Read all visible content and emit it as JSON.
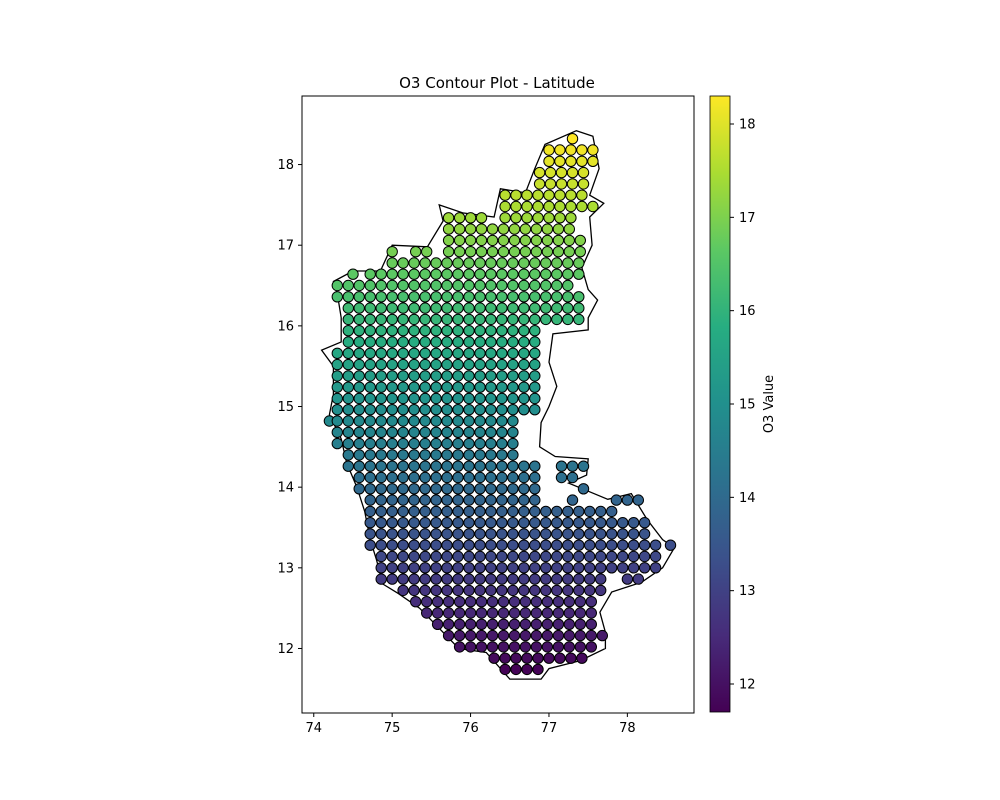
{
  "chart_data": {
    "type": "scatter",
    "title": "O3 Contour Plot - Latitude",
    "xlabel": "",
    "ylabel": "",
    "xlim": [
      73.85,
      78.85
    ],
    "ylim": [
      11.2,
      18.85
    ],
    "x_ticks": [
      "74",
      "75",
      "76",
      "77",
      "78"
    ],
    "y_ticks": [
      "12",
      "13",
      "14",
      "15",
      "16",
      "17",
      "18"
    ],
    "grid": false,
    "colormap": "viridis",
    "colorbar": {
      "label": "O3 Value",
      "range": [
        11.7,
        18.3
      ],
      "ticks": [
        "12",
        "13",
        "14",
        "15",
        "16",
        "17",
        "18"
      ]
    },
    "marker_edge_color": "#000000",
    "note_value": "O3 value equals the point's latitude",
    "grid_step": 0.14,
    "grid_origin": [
      77.3,
      18.32
    ],
    "rows": [
      {
        "lat": 18.32,
        "lon_ranges": [
          [
            77.3,
            77.3
          ]
        ]
      },
      {
        "lat": 18.18,
        "lon_ranges": [
          [
            77.0,
            77.56
          ]
        ]
      },
      {
        "lat": 18.04,
        "lon_ranges": [
          [
            77.0,
            77.56
          ]
        ]
      },
      {
        "lat": 17.9,
        "lon_ranges": [
          [
            76.88,
            77.56
          ]
        ]
      },
      {
        "lat": 17.76,
        "lon_ranges": [
          [
            76.88,
            77.56
          ]
        ]
      },
      {
        "lat": 17.62,
        "lon_ranges": [
          [
            76.44,
            77.44
          ]
        ]
      },
      {
        "lat": 17.48,
        "lon_ranges": [
          [
            76.44,
            77.56
          ]
        ]
      },
      {
        "lat": 17.34,
        "lon_ranges": [
          [
            75.72,
            76.16
          ],
          [
            76.44,
            77.3
          ]
        ]
      },
      {
        "lat": 17.2,
        "lon_ranges": [
          [
            75.72,
            77.3
          ]
        ]
      },
      {
        "lat": 17.06,
        "lon_ranges": [
          [
            75.72,
            77.44
          ]
        ]
      },
      {
        "lat": 16.92,
        "lon_ranges": [
          [
            75.0,
            75.0
          ],
          [
            75.3,
            75.44
          ],
          [
            75.72,
            77.44
          ]
        ]
      },
      {
        "lat": 16.78,
        "lon_ranges": [
          [
            75.0,
            77.44
          ]
        ]
      },
      {
        "lat": 16.64,
        "lon_ranges": [
          [
            74.5,
            74.5
          ],
          [
            74.72,
            77.44
          ]
        ]
      },
      {
        "lat": 16.5,
        "lon_ranges": [
          [
            74.3,
            77.3
          ]
        ]
      },
      {
        "lat": 16.36,
        "lon_ranges": [
          [
            74.3,
            77.44
          ]
        ]
      },
      {
        "lat": 16.22,
        "lon_ranges": [
          [
            74.44,
            77.44
          ]
        ]
      },
      {
        "lat": 16.08,
        "lon_ranges": [
          [
            74.44,
            77.44
          ]
        ]
      },
      {
        "lat": 15.94,
        "lon_ranges": [
          [
            74.44,
            76.9
          ]
        ]
      },
      {
        "lat": 15.8,
        "lon_ranges": [
          [
            74.44,
            76.9
          ]
        ]
      },
      {
        "lat": 15.66,
        "lon_ranges": [
          [
            74.3,
            76.9
          ]
        ]
      },
      {
        "lat": 15.52,
        "lon_ranges": [
          [
            74.3,
            76.9
          ]
        ]
      },
      {
        "lat": 15.38,
        "lon_ranges": [
          [
            74.3,
            76.9
          ]
        ]
      },
      {
        "lat": 15.24,
        "lon_ranges": [
          [
            74.3,
            76.9
          ]
        ]
      },
      {
        "lat": 15.1,
        "lon_ranges": [
          [
            74.3,
            76.9
          ]
        ]
      },
      {
        "lat": 14.96,
        "lon_ranges": [
          [
            74.3,
            76.9
          ]
        ]
      },
      {
        "lat": 14.82,
        "lon_ranges": [
          [
            74.2,
            74.2
          ],
          [
            74.3,
            76.66
          ]
        ]
      },
      {
        "lat": 14.68,
        "lon_ranges": [
          [
            74.3,
            76.66
          ]
        ]
      },
      {
        "lat": 14.54,
        "lon_ranges": [
          [
            74.3,
            76.66
          ]
        ]
      },
      {
        "lat": 14.4,
        "lon_ranges": [
          [
            74.44,
            76.66
          ]
        ]
      },
      {
        "lat": 14.26,
        "lon_ranges": [
          [
            74.44,
            76.88
          ],
          [
            77.16,
            77.44
          ]
        ]
      },
      {
        "lat": 14.12,
        "lon_ranges": [
          [
            74.58,
            76.88
          ],
          [
            77.16,
            77.3
          ]
        ]
      },
      {
        "lat": 13.98,
        "lon_ranges": [
          [
            74.58,
            76.88
          ],
          [
            77.44,
            77.44
          ]
        ]
      },
      {
        "lat": 13.84,
        "lon_ranges": [
          [
            74.72,
            76.88
          ],
          [
            77.3,
            77.3
          ],
          [
            77.86,
            78.14
          ]
        ]
      },
      {
        "lat": 13.7,
        "lon_ranges": [
          [
            74.72,
            77.84
          ]
        ]
      },
      {
        "lat": 13.56,
        "lon_ranges": [
          [
            74.72,
            78.26
          ]
        ]
      },
      {
        "lat": 13.42,
        "lon_ranges": [
          [
            74.72,
            78.26
          ]
        ]
      },
      {
        "lat": 13.28,
        "lon_ranges": [
          [
            74.72,
            78.38
          ],
          [
            78.55,
            78.55
          ]
        ]
      },
      {
        "lat": 13.14,
        "lon_ranges": [
          [
            74.86,
            78.38
          ]
        ]
      },
      {
        "lat": 13.0,
        "lon_ranges": [
          [
            74.86,
            78.38
          ]
        ]
      },
      {
        "lat": 12.86,
        "lon_ranges": [
          [
            74.86,
            77.7
          ],
          [
            78.0,
            78.14
          ]
        ]
      },
      {
        "lat": 12.72,
        "lon_ranges": [
          [
            75.14,
            77.7
          ]
        ]
      },
      {
        "lat": 12.58,
        "lon_ranges": [
          [
            75.3,
            77.56
          ]
        ]
      },
      {
        "lat": 12.44,
        "lon_ranges": [
          [
            75.44,
            77.56
          ]
        ]
      },
      {
        "lat": 12.3,
        "lon_ranges": [
          [
            75.58,
            77.56
          ]
        ]
      },
      {
        "lat": 12.16,
        "lon_ranges": [
          [
            75.72,
            77.7
          ]
        ]
      },
      {
        "lat": 12.02,
        "lon_ranges": [
          [
            75.86,
            77.56
          ]
        ]
      },
      {
        "lat": 11.88,
        "lon_ranges": [
          [
            76.3,
            77.44
          ]
        ]
      },
      {
        "lat": 11.74,
        "lon_ranges": [
          [
            76.44,
            76.88
          ]
        ]
      }
    ],
    "outline": [
      [
        77.35,
        18.42
      ],
      [
        77.56,
        18.35
      ],
      [
        77.64,
        17.95
      ],
      [
        77.52,
        17.62
      ],
      [
        77.7,
        17.52
      ],
      [
        77.52,
        17.35
      ],
      [
        77.55,
        17.0
      ],
      [
        77.42,
        16.72
      ],
      [
        77.5,
        16.45
      ],
      [
        77.62,
        16.32
      ],
      [
        77.5,
        16.1
      ],
      [
        77.5,
        15.95
      ],
      [
        77.05,
        15.9
      ],
      [
        77.0,
        15.55
      ],
      [
        77.1,
        15.25
      ],
      [
        77.0,
        15.0
      ],
      [
        76.9,
        14.8
      ],
      [
        76.88,
        14.5
      ],
      [
        77.08,
        14.38
      ],
      [
        77.5,
        14.35
      ],
      [
        77.48,
        14.15
      ],
      [
        77.25,
        14.05
      ],
      [
        77.5,
        13.95
      ],
      [
        77.75,
        13.85
      ],
      [
        78.05,
        13.92
      ],
      [
        78.25,
        13.6
      ],
      [
        78.45,
        13.35
      ],
      [
        78.6,
        13.25
      ],
      [
        78.45,
        13.0
      ],
      [
        78.18,
        12.82
      ],
      [
        77.8,
        12.7
      ],
      [
        77.65,
        12.45
      ],
      [
        77.72,
        12.2
      ],
      [
        77.72,
        12.0
      ],
      [
        77.4,
        11.85
      ],
      [
        77.0,
        11.75
      ],
      [
        76.9,
        11.62
      ],
      [
        76.5,
        11.62
      ],
      [
        76.2,
        11.95
      ],
      [
        75.85,
        12.0
      ],
      [
        75.6,
        12.25
      ],
      [
        75.35,
        12.5
      ],
      [
        75.08,
        12.68
      ],
      [
        74.88,
        12.8
      ],
      [
        74.8,
        13.1
      ],
      [
        74.72,
        13.35
      ],
      [
        74.65,
        13.7
      ],
      [
        74.55,
        14.0
      ],
      [
        74.42,
        14.3
      ],
      [
        74.35,
        14.6
      ],
      [
        74.2,
        14.9
      ],
      [
        74.25,
        15.15
      ],
      [
        74.25,
        15.5
      ],
      [
        74.1,
        15.7
      ],
      [
        74.35,
        15.8
      ],
      [
        74.35,
        16.1
      ],
      [
        74.3,
        16.4
      ],
      [
        74.25,
        16.55
      ],
      [
        74.5,
        16.68
      ],
      [
        74.85,
        16.68
      ],
      [
        75.0,
        17.0
      ],
      [
        75.45,
        16.98
      ],
      [
        75.65,
        17.3
      ],
      [
        75.6,
        17.5
      ],
      [
        75.9,
        17.4
      ],
      [
        76.3,
        17.35
      ],
      [
        76.38,
        17.7
      ],
      [
        76.7,
        17.65
      ],
      [
        76.82,
        17.95
      ],
      [
        76.95,
        18.25
      ],
      [
        77.35,
        18.42
      ]
    ]
  }
}
